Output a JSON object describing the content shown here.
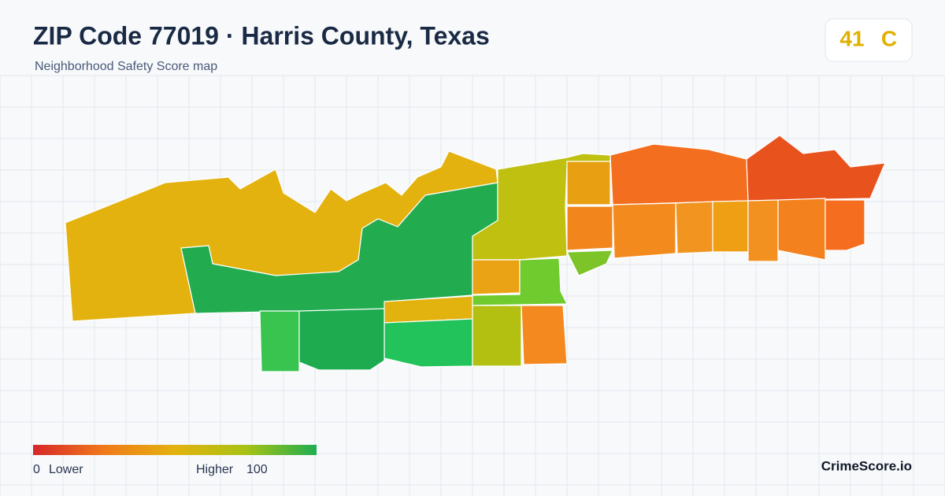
{
  "header": {
    "title": "ZIP Code 77019 · Harris County, Texas",
    "subtitle": "Neighborhood Safety Score map"
  },
  "score": {
    "value": 41,
    "grade": "C"
  },
  "legend": {
    "min": 0,
    "min_label": "Lower",
    "max_label": "Higher",
    "max": 100
  },
  "brand": "CrimeScore.io"
}
